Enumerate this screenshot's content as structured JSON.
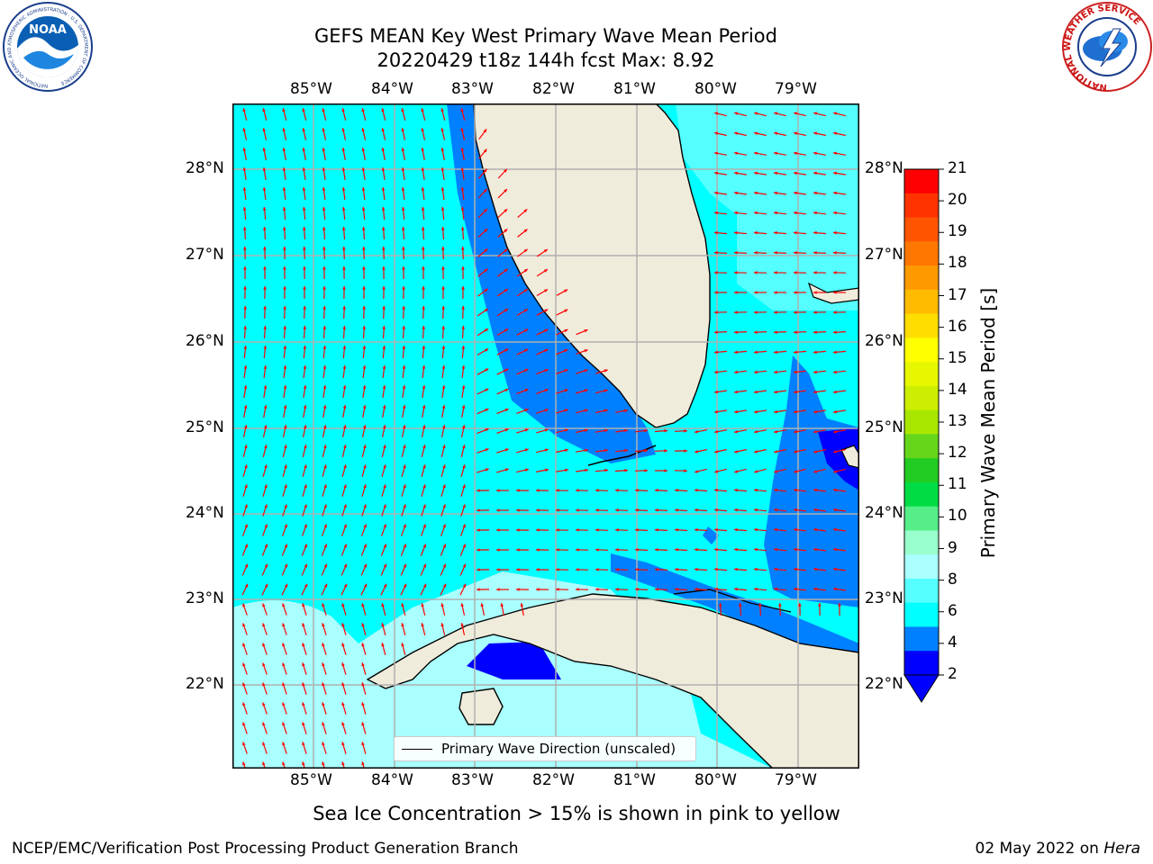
{
  "title": {
    "line1": "GEFS MEAN Key West Primary Wave Mean Period",
    "line2": "20220429 t18z 144h fcst   Max: 8.92"
  },
  "axes": {
    "lon_ticks": [
      "85°W",
      "84°W",
      "83°W",
      "82°W",
      "81°W",
      "80°W",
      "79°W"
    ],
    "lat_ticks": [
      "28°N",
      "27°N",
      "26°N",
      "25°N",
      "24°N",
      "23°N",
      "22°N"
    ]
  },
  "legend": {
    "label": "Primary Wave Direction (unscaled)"
  },
  "colorbar": {
    "label": "Primary Wave Mean Period [s]",
    "ticks": [
      "21",
      "20",
      "19",
      "18",
      "17",
      "16",
      "15",
      "14",
      "13",
      "12",
      "11",
      "10",
      "9",
      "8",
      "6",
      "4",
      "2"
    ],
    "colors": [
      "#ff0000",
      "#ff3300",
      "#ff5500",
      "#ff7700",
      "#ff9900",
      "#ffbb00",
      "#ffdd00",
      "#ffff00",
      "#e6f700",
      "#ccee00",
      "#a8e600",
      "#66d61a",
      "#22cc22",
      "#00dd44",
      "#55ee88",
      "#99ffcc",
      "#aaffff",
      "#55ffff",
      "#00ffff",
      "#0080ff",
      "#0000ff"
    ]
  },
  "logos": {
    "noaa_text": "NOAA",
    "noaa_ring": "NATIONAL OCEANIC AND ATMOSPHERIC ADMINISTRATION · U.S. DEPARTMENT OF COMMERCE",
    "nws_ring": "NATIONAL WEATHER SERVICE"
  },
  "footnote": "Sea Ice Concentration > 15% is shown in pink to yellow",
  "credit_left": "NCEP/EMC/Verification Post Processing Product Generation Branch",
  "credit_right_prefix": "02 May 2022 on ",
  "credit_right_host": "Hera"
}
